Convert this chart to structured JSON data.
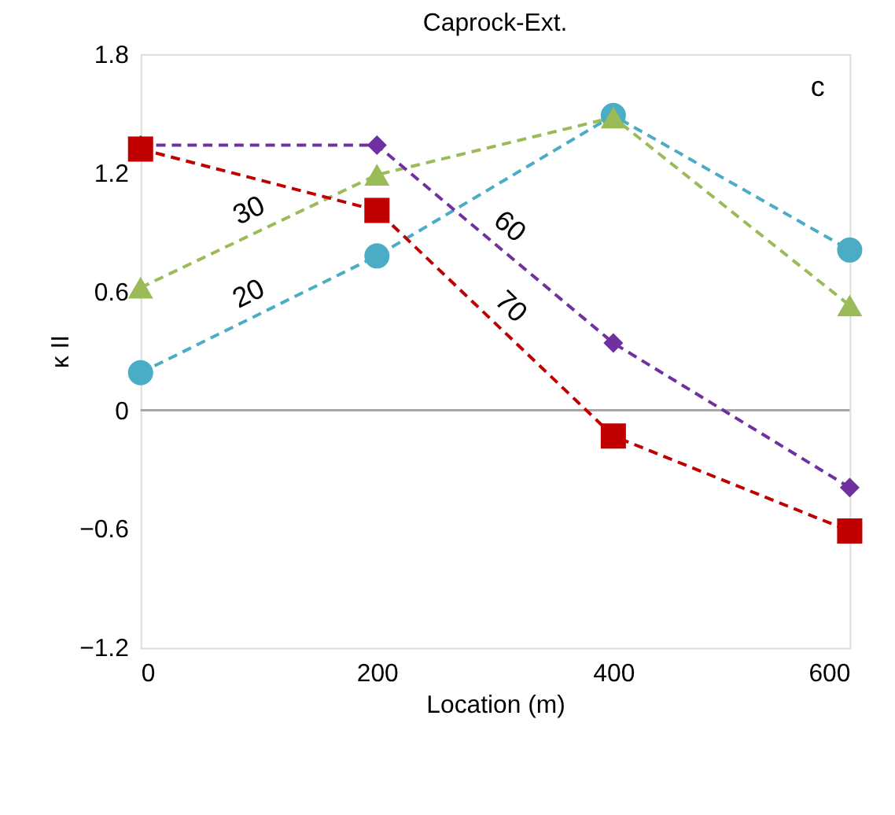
{
  "chart_data": {
    "type": "line",
    "title": "Caprock-Ext.",
    "xlabel": "Location (m)",
    "ylabel": "κ II",
    "annotations": [
      "c"
    ],
    "x": [
      0,
      200,
      400,
      600
    ],
    "series": [
      {
        "name": "20",
        "color": "#4bacc6",
        "marker": "circle",
        "values": [
          0.19,
          0.78,
          1.49,
          0.81
        ]
      },
      {
        "name": "30",
        "color": "#9bbb59",
        "marker": "triangle",
        "values": [
          0.62,
          1.19,
          1.48,
          0.53
        ]
      },
      {
        "name": "60",
        "color": "#7030a0",
        "marker": "diamond",
        "values": [
          1.34,
          1.34,
          0.34,
          -0.39
        ]
      },
      {
        "name": "70",
        "color": "#c00000",
        "marker": "square",
        "values": [
          1.32,
          1.01,
          -0.13,
          -0.61
        ]
      }
    ],
    "xlim": [
      0,
      600
    ],
    "xticks": [
      0,
      200,
      400,
      600
    ],
    "ylim": [
      -1.2,
      1.8
    ],
    "yticks": [
      -1.2,
      -0.6,
      0,
      0.6,
      1.2,
      1.8
    ],
    "ref_lines": [
      {
        "axis": "y",
        "value": 0,
        "color": "#a6a6a6"
      }
    ],
    "line_style": "dashed",
    "grid": false
  }
}
